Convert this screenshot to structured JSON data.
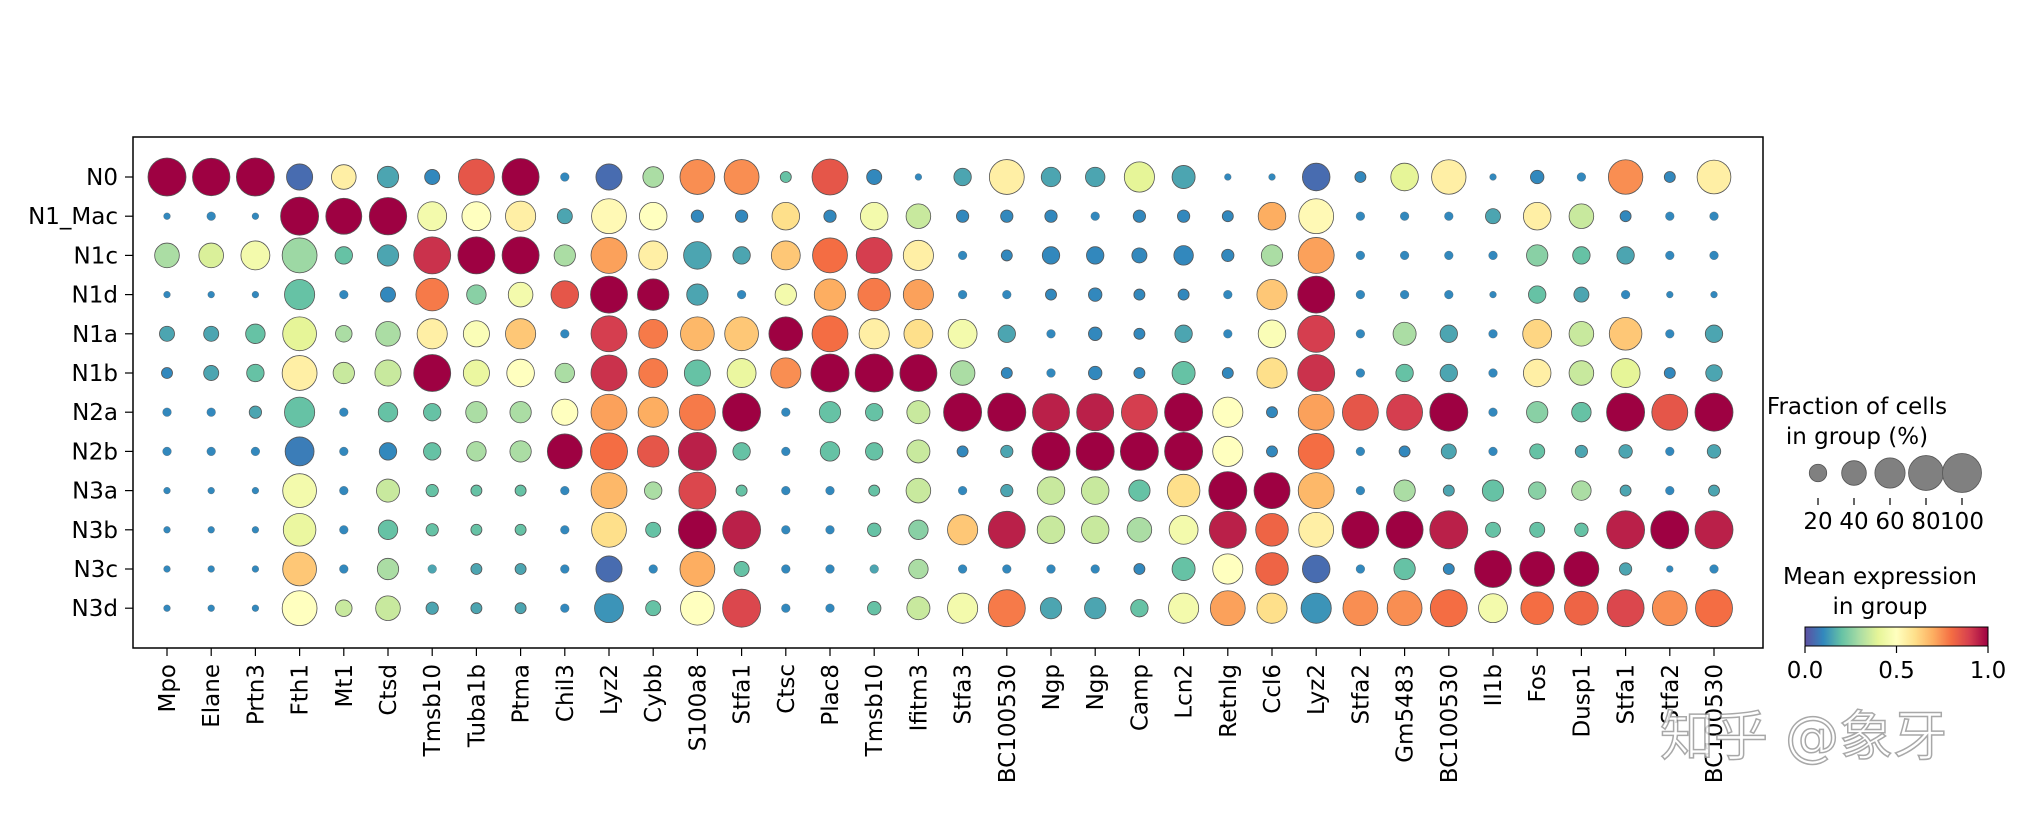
{
  "chart_data": {
    "type": "dotplot",
    "rows": [
      "N0",
      "N1_Mac",
      "N1c",
      "N1d",
      "N1a",
      "N1b",
      "N2a",
      "N2b",
      "N3a",
      "N3b",
      "N3c",
      "N3d"
    ],
    "columns": [
      "Mpo",
      "Elane",
      "Prtn3",
      "Fth1",
      "Mt1",
      "Ctsd",
      "Tmsb10",
      "Tuba1b",
      "Ptma",
      "Chil3",
      "Lyz2",
      "Cybb",
      "S100a8",
      "Stfa1",
      "Ctsc",
      "Plac8",
      "Tmsb10",
      "Ifitm3",
      "Stfa3",
      "BC100530",
      "Ngp",
      "Ngp",
      "Camp",
      "Lcn2",
      "Retnlg",
      "Ccl6",
      "Lyz2",
      "Stfa2",
      "Gm5483",
      "BC100530",
      "Il1b",
      "Fos",
      "Dusp1",
      "Stfa1",
      "Stfa2",
      "BC100530"
    ],
    "fraction_percent": [
      [
        95,
        92,
        95,
        45,
        40,
        30,
        15,
        85,
        90,
        5,
        45,
        28,
        80,
        80,
        8,
        85,
        15,
        3,
        20,
        80,
        25,
        25,
        60,
        35,
        3,
        3,
        50,
        8,
        50,
        78,
        3,
        12,
        5,
        78,
        8,
        75
      ],
      [
        3,
        5,
        3,
        95,
        85,
        92,
        55,
        55,
        60,
        15,
        80,
        50,
        10,
        10,
        50,
        10,
        50,
        40,
        10,
        10,
        10,
        5,
        10,
        10,
        8,
        50,
        80,
        5,
        5,
        5,
        15,
        50,
        40,
        8,
        5,
        5
      ],
      [
        40,
        40,
        55,
        80,
        20,
        30,
        90,
        90,
        90,
        30,
        85,
        55,
        50,
        20,
        55,
        80,
        85,
        60,
        5,
        8,
        20,
        20,
        15,
        25,
        10,
        30,
        85,
        5,
        5,
        5,
        5,
        30,
        20,
        20,
        5,
        5
      ],
      [
        3,
        3,
        3,
        60,
        5,
        15,
        70,
        25,
        40,
        50,
        90,
        65,
        30,
        5,
        30,
        65,
        70,
        60,
        5,
        5,
        8,
        12,
        8,
        8,
        5,
        60,
        90,
        5,
        5,
        5,
        3,
        20,
        15,
        5,
        3,
        3
      ],
      [
        15,
        15,
        25,
        75,
        18,
        40,
        60,
        45,
        60,
        5,
        85,
        55,
        75,
        75,
        75,
        85,
        60,
        55,
        55,
        20,
        5,
        12,
        8,
        20,
        5,
        50,
        90,
        5,
        35,
        20,
        5,
        55,
        40,
        70,
        5,
        20
      ],
      [
        8,
        15,
        20,
        80,
        30,
        45,
        90,
        45,
        50,
        25,
        85,
        55,
        45,
        55,
        60,
        95,
        95,
        90,
        40,
        8,
        5,
        12,
        8,
        35,
        8,
        60,
        90,
        5,
        20,
        20,
        5,
        50,
        40,
        55,
        8,
        18
      ],
      [
        5,
        5,
        10,
        60,
        5,
        25,
        20,
        30,
        30,
        45,
        85,
        60,
        85,
        95,
        5,
        30,
        20,
        35,
        95,
        95,
        90,
        90,
        85,
        95,
        60,
        8,
        85,
        85,
        85,
        95,
        5,
        30,
        25,
        95,
        85,
        95
      ],
      [
        5,
        5,
        5,
        55,
        5,
        20,
        20,
        25,
        30,
        80,
        90,
        65,
        95,
        20,
        5,
        25,
        20,
        35,
        8,
        10,
        95,
        95,
        95,
        95,
        60,
        8,
        85,
        5,
        8,
        15,
        5,
        15,
        10,
        12,
        5,
        12
      ],
      [
        3,
        3,
        3,
        75,
        5,
        35,
        10,
        8,
        8,
        5,
        85,
        20,
        90,
        8,
        5,
        5,
        8,
        40,
        5,
        10,
        50,
        50,
        30,
        70,
        95,
        85,
        85,
        5,
        30,
        8,
        30,
        20,
        25,
        8,
        5,
        8
      ],
      [
        3,
        3,
        3,
        70,
        5,
        25,
        10,
        8,
        8,
        5,
        80,
        15,
        95,
        95,
        5,
        5,
        12,
        25,
        60,
        90,
        50,
        50,
        40,
        55,
        90,
        70,
        80,
        90,
        90,
        95,
        15,
        15,
        12,
        95,
        95,
        95
      ],
      [
        3,
        3,
        3,
        75,
        5,
        30,
        5,
        8,
        8,
        5,
        45,
        5,
        80,
        15,
        5,
        5,
        5,
        25,
        5,
        5,
        5,
        5,
        8,
        35,
        60,
        70,
        50,
        5,
        30,
        8,
        90,
        80,
        80,
        10,
        3,
        5
      ],
      [
        3,
        3,
        3,
        80,
        18,
        40,
        10,
        8,
        8,
        5,
        55,
        15,
        75,
        95,
        5,
        5,
        12,
        35,
        60,
        90,
        30,
        30,
        20,
        60,
        80,
        60,
        60,
        80,
        80,
        90,
        55,
        70,
        75,
        90,
        80,
        90
      ]
    ],
    "mean_expression": [
      [
        1.0,
        1.0,
        1.0,
        0.05,
        0.55,
        0.15,
        0.1,
        0.85,
        1.0,
        0.1,
        0.05,
        0.3,
        0.75,
        0.75,
        0.2,
        0.85,
        0.1,
        0.1,
        0.15,
        0.55,
        0.15,
        0.15,
        0.4,
        0.15,
        0.1,
        0.1,
        0.05,
        0.1,
        0.4,
        0.55,
        0.1,
        0.1,
        0.1,
        0.75,
        0.1,
        0.55
      ],
      [
        0.1,
        0.1,
        0.1,
        1.0,
        1.0,
        1.0,
        0.45,
        0.5,
        0.55,
        0.15,
        0.52,
        0.5,
        0.1,
        0.1,
        0.6,
        0.1,
        0.45,
        0.35,
        0.1,
        0.1,
        0.1,
        0.1,
        0.1,
        0.1,
        0.1,
        0.7,
        0.52,
        0.1,
        0.1,
        0.1,
        0.15,
        0.55,
        0.35,
        0.1,
        0.1,
        0.1
      ],
      [
        0.3,
        0.38,
        0.45,
        0.28,
        0.2,
        0.15,
        0.92,
        1.0,
        1.0,
        0.3,
        0.72,
        0.55,
        0.15,
        0.15,
        0.65,
        0.8,
        0.9,
        0.55,
        0.1,
        0.1,
        0.1,
        0.1,
        0.1,
        0.1,
        0.1,
        0.3,
        0.72,
        0.1,
        0.1,
        0.1,
        0.1,
        0.25,
        0.2,
        0.15,
        0.1,
        0.1
      ],
      [
        0.1,
        0.1,
        0.1,
        0.2,
        0.1,
        0.1,
        0.78,
        0.25,
        0.45,
        0.85,
        1.0,
        1.0,
        0.15,
        0.1,
        0.45,
        0.7,
        0.78,
        0.72,
        0.1,
        0.1,
        0.1,
        0.1,
        0.1,
        0.1,
        0.1,
        0.65,
        1.0,
        0.1,
        0.1,
        0.1,
        0.1,
        0.2,
        0.15,
        0.1,
        0.1,
        0.1
      ],
      [
        0.15,
        0.15,
        0.2,
        0.4,
        0.3,
        0.3,
        0.55,
        0.48,
        0.65,
        0.1,
        0.9,
        0.78,
        0.68,
        0.65,
        1.0,
        0.8,
        0.55,
        0.6,
        0.45,
        0.15,
        0.1,
        0.1,
        0.1,
        0.15,
        0.1,
        0.48,
        0.9,
        0.1,
        0.3,
        0.15,
        0.1,
        0.62,
        0.35,
        0.65,
        0.1,
        0.15
      ],
      [
        0.1,
        0.15,
        0.2,
        0.55,
        0.35,
        0.35,
        1.0,
        0.42,
        0.5,
        0.3,
        0.92,
        0.78,
        0.2,
        0.42,
        0.75,
        1.0,
        1.0,
        1.0,
        0.3,
        0.1,
        0.1,
        0.1,
        0.1,
        0.2,
        0.1,
        0.6,
        0.92,
        0.1,
        0.2,
        0.15,
        0.1,
        0.55,
        0.35,
        0.4,
        0.1,
        0.15
      ],
      [
        0.1,
        0.1,
        0.15,
        0.2,
        0.1,
        0.2,
        0.2,
        0.3,
        0.3,
        0.5,
        0.72,
        0.7,
        0.78,
        1.0,
        0.1,
        0.2,
        0.2,
        0.35,
        1.0,
        1.0,
        0.95,
        0.95,
        0.9,
        1.0,
        0.5,
        0.1,
        0.72,
        0.85,
        0.9,
        1.0,
        0.1,
        0.25,
        0.2,
        1.0,
        0.85,
        1.0
      ],
      [
        0.1,
        0.1,
        0.1,
        0.08,
        0.1,
        0.1,
        0.2,
        0.3,
        0.3,
        1.0,
        0.8,
        0.85,
        0.95,
        0.2,
        0.1,
        0.2,
        0.2,
        0.35,
        0.1,
        0.15,
        1.0,
        1.0,
        1.0,
        1.0,
        0.5,
        0.1,
        0.8,
        0.1,
        0.1,
        0.15,
        0.1,
        0.2,
        0.15,
        0.15,
        0.1,
        0.15
      ],
      [
        0.1,
        0.1,
        0.1,
        0.45,
        0.1,
        0.35,
        0.2,
        0.2,
        0.2,
        0.1,
        0.68,
        0.3,
        0.88,
        0.2,
        0.1,
        0.1,
        0.2,
        0.35,
        0.1,
        0.15,
        0.35,
        0.35,
        0.2,
        0.6,
        1.0,
        1.0,
        0.68,
        0.1,
        0.3,
        0.15,
        0.2,
        0.25,
        0.3,
        0.15,
        0.1,
        0.15
      ],
      [
        0.1,
        0.1,
        0.1,
        0.42,
        0.1,
        0.2,
        0.2,
        0.2,
        0.2,
        0.1,
        0.6,
        0.2,
        1.0,
        0.95,
        0.1,
        0.1,
        0.2,
        0.25,
        0.65,
        0.95,
        0.35,
        0.35,
        0.3,
        0.45,
        0.95,
        0.82,
        0.55,
        1.0,
        1.0,
        0.95,
        0.2,
        0.2,
        0.2,
        0.95,
        1.0,
        0.95
      ],
      [
        0.1,
        0.1,
        0.1,
        0.65,
        0.1,
        0.3,
        0.15,
        0.15,
        0.15,
        0.1,
        0.05,
        0.1,
        0.7,
        0.2,
        0.1,
        0.1,
        0.15,
        0.3,
        0.1,
        0.1,
        0.1,
        0.1,
        0.1,
        0.2,
        0.5,
        0.82,
        0.05,
        0.1,
        0.2,
        0.1,
        1.0,
        1.0,
        1.0,
        0.15,
        0.1,
        0.1
      ],
      [
        0.1,
        0.1,
        0.1,
        0.5,
        0.35,
        0.35,
        0.15,
        0.15,
        0.15,
        0.1,
        0.12,
        0.2,
        0.5,
        0.88,
        0.1,
        0.1,
        0.2,
        0.35,
        0.45,
        0.78,
        0.15,
        0.15,
        0.2,
        0.45,
        0.72,
        0.6,
        0.12,
        0.75,
        0.75,
        0.8,
        0.45,
        0.8,
        0.82,
        0.88,
        0.75,
        0.8
      ]
    ],
    "size_legend": {
      "title_line1": "Fraction of cells",
      "title_line2": "in group (%)",
      "values": [
        20,
        40,
        60,
        80,
        100
      ],
      "labels": [
        "20",
        "40",
        "60",
        "80",
        "100"
      ]
    },
    "color_legend": {
      "title_line1": "Mean expression",
      "title_line2": "in group",
      "colormap": "Spectral_r",
      "range": [
        0.0,
        1.0
      ],
      "tick_labels": [
        "0.0",
        "0.5",
        "1.0"
      ]
    }
  },
  "watermark": {
    "text": "知乎 @象牙"
  }
}
